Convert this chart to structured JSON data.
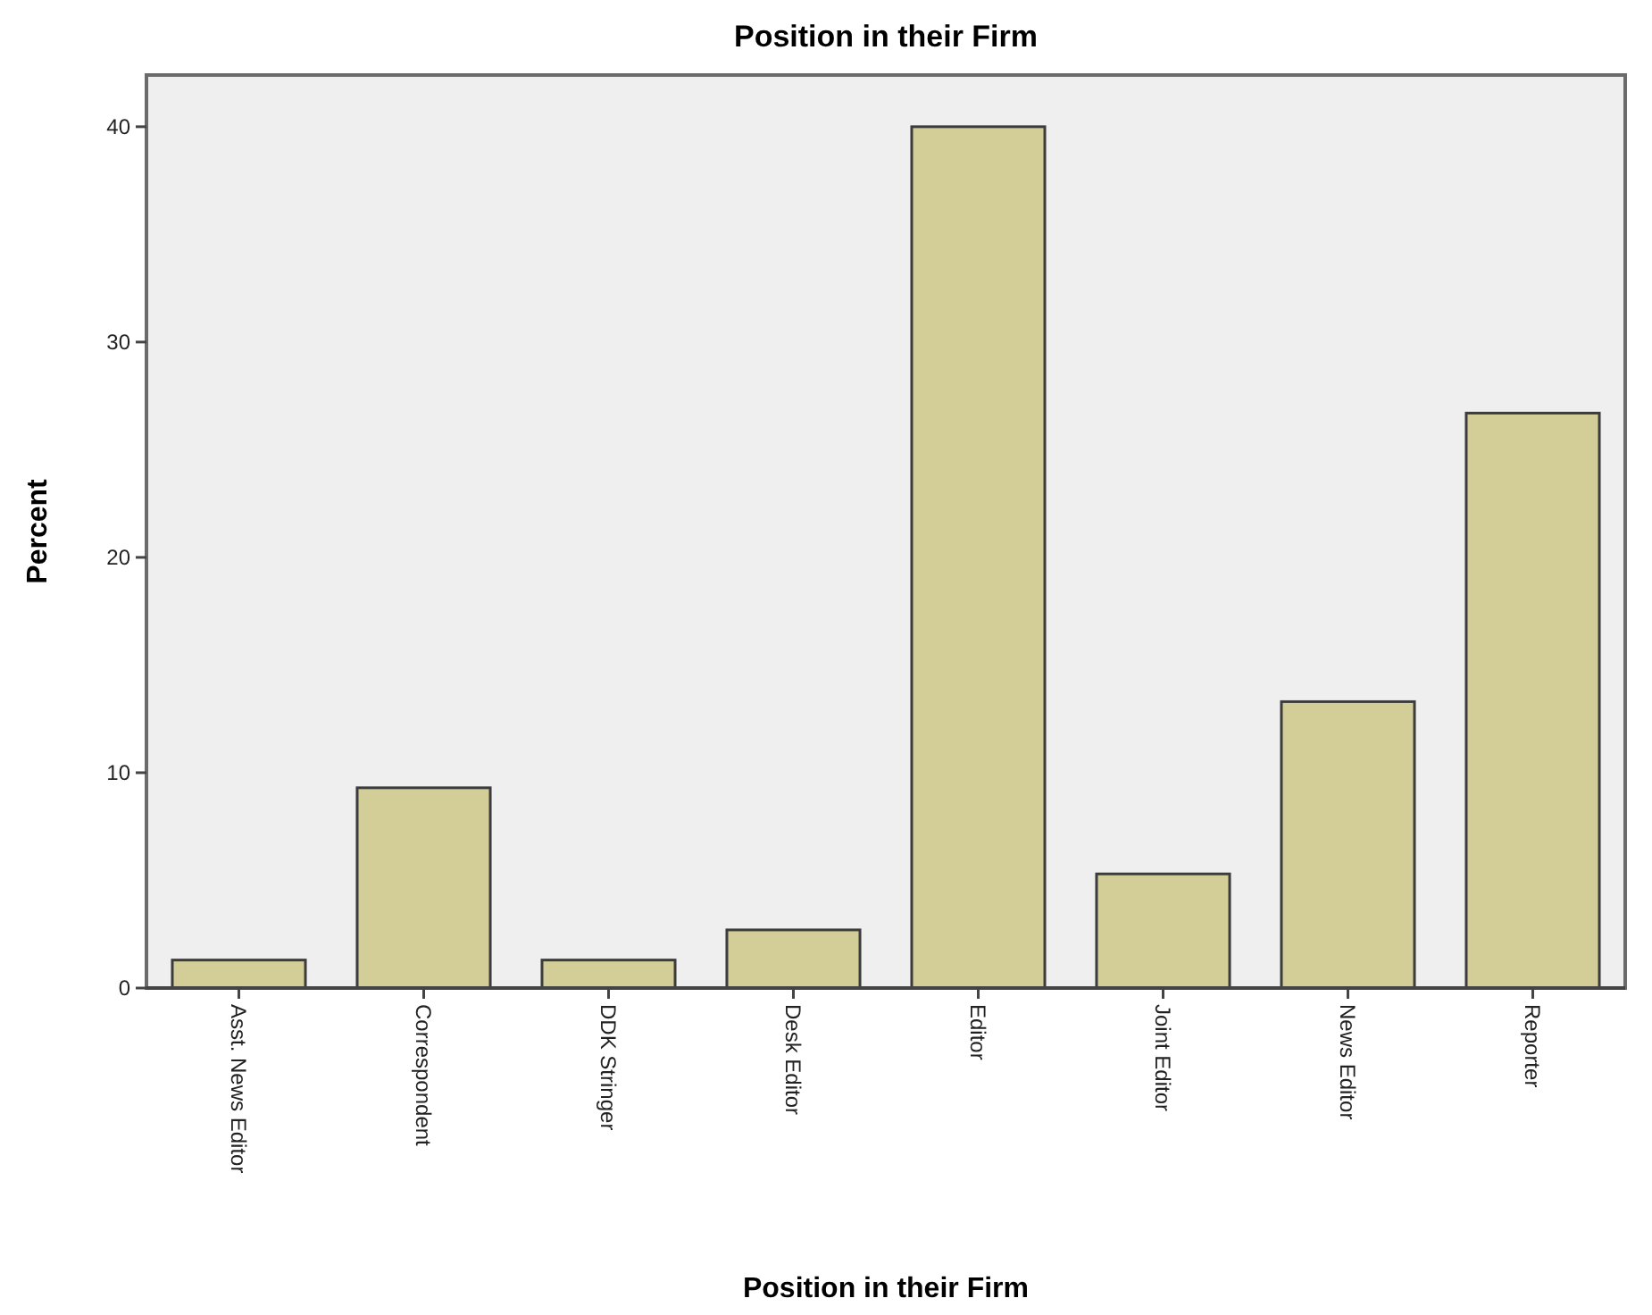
{
  "chart_data": {
    "type": "bar",
    "title": "Position in their Firm",
    "xlabel": "Position in their Firm",
    "ylabel": "Percent",
    "categories": [
      "Asst. News Editor",
      "Correspondent",
      "DDK Stringer",
      "Desk Editor",
      "Editor",
      "Joint Editor",
      "News Editor",
      "Reporter"
    ],
    "values": [
      1.3,
      9.3,
      1.3,
      2.7,
      40,
      5.3,
      13.3,
      26.7
    ],
    "color": "#d3ce97",
    "ylim": [
      0,
      42.4
    ],
    "yticks": [
      0,
      10,
      20,
      30,
      40
    ],
    "grid": false
  }
}
